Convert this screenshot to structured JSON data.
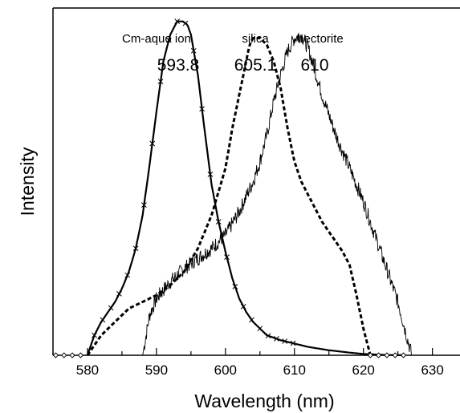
{
  "chart_data": {
    "type": "line",
    "title": "",
    "xlabel": "Wavelength (nm)",
    "ylabel": "Intensity",
    "xlim": [
      575,
      634
    ],
    "ylim": [
      0,
      1.04
    ],
    "x_ticks": [
      580,
      590,
      600,
      610,
      620,
      630
    ],
    "grid": false,
    "annotations": [
      {
        "name": "Cm-aquo ion",
        "value": "593.8",
        "x": 593.8
      },
      {
        "name": "silica",
        "value": "605.1",
        "x": 605.1
      },
      {
        "name": "hectorite",
        "value": "610",
        "x": 610
      }
    ],
    "series": [
      {
        "name": "Cm-aquo ion",
        "style": "solid-thick",
        "x": [
          580,
          581,
          582,
          583,
          584,
          585,
          586,
          587,
          588,
          589,
          590,
          591,
          592,
          593,
          593.8,
          594.5,
          595,
          596,
          597,
          598,
          599,
          600,
          601,
          602,
          603,
          604,
          605,
          606,
          608,
          610,
          612,
          615,
          618,
          620,
          623,
          626
        ],
        "y": [
          0.0,
          0.06,
          0.1,
          0.13,
          0.16,
          0.2,
          0.25,
          0.32,
          0.42,
          0.57,
          0.73,
          0.88,
          0.96,
          1.0,
          1.0,
          0.99,
          0.96,
          0.84,
          0.67,
          0.51,
          0.4,
          0.31,
          0.23,
          0.17,
          0.13,
          0.1,
          0.08,
          0.06,
          0.045,
          0.035,
          0.025,
          0.015,
          0.008,
          0.004,
          0.001,
          0.0
        ]
      },
      {
        "name": "silica",
        "style": "dashed",
        "x": [
          580,
          582,
          584,
          586,
          588,
          590,
          592,
          594,
          596,
          598,
          600,
          601,
          602,
          603,
          603.5,
          604,
          605,
          606,
          607,
          608,
          609,
          610,
          611,
          612,
          613,
          614,
          615,
          616,
          617,
          618,
          619,
          620,
          621
        ],
        "y": [
          0.0,
          0.06,
          0.1,
          0.14,
          0.16,
          0.18,
          0.21,
          0.25,
          0.32,
          0.42,
          0.56,
          0.68,
          0.78,
          0.88,
          0.93,
          0.95,
          0.95,
          0.93,
          0.88,
          0.8,
          0.68,
          0.58,
          0.52,
          0.48,
          0.44,
          0.4,
          0.37,
          0.34,
          0.31,
          0.27,
          0.18,
          0.08,
          0.0
        ]
      },
      {
        "name": "hectorite",
        "style": "solid-thin",
        "x": [
          588,
          589,
          590,
          592,
          594,
          596,
          598,
          600,
          602,
          604,
          605,
          606,
          607,
          608,
          609,
          610,
          611,
          612,
          613,
          614,
          615,
          616,
          618,
          620,
          622,
          624,
          625,
          626,
          627
        ],
        "y": [
          0.0,
          0.12,
          0.17,
          0.22,
          0.26,
          0.29,
          0.32,
          0.36,
          0.43,
          0.52,
          0.58,
          0.66,
          0.76,
          0.84,
          0.91,
          0.95,
          0.96,
          0.92,
          0.85,
          0.78,
          0.72,
          0.66,
          0.56,
          0.46,
          0.34,
          0.22,
          0.16,
          0.08,
          0.0
        ]
      }
    ]
  }
}
